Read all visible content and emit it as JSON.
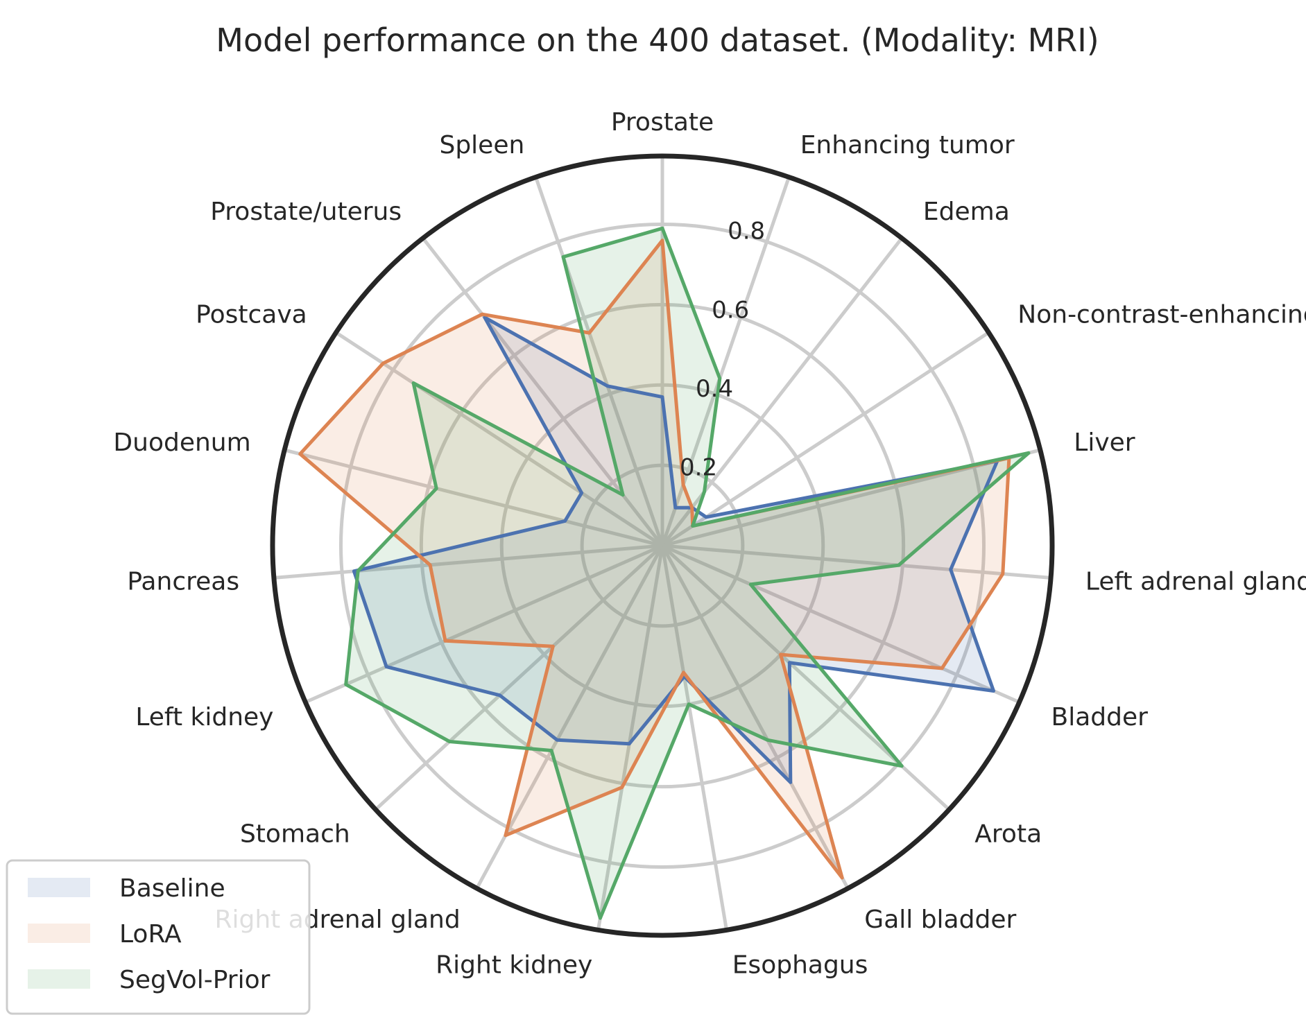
{
  "chart_data": {
    "type": "radar",
    "title": "Model performance on the 400 dataset. (Modality: MRI)",
    "categories": [
      "Prostate",
      "Enhancing tumor",
      "Edema",
      "Non-contrast-enhancing tumor core",
      "Liver",
      "Left adrenal gland",
      "Bladder",
      "Arota",
      "Gall bladder",
      "Esophagus",
      "Right kidney",
      "Right adrenal gland",
      "Stomach",
      "Left kidney",
      "Pancreas",
      "Duodenum",
      "Postcava",
      "Prostate/uterus",
      "Spleen"
    ],
    "r_ticks": [
      0.2,
      0.4,
      0.6,
      0.8
    ],
    "r_tick_labels": [
      "0.2",
      "0.4",
      "0.6",
      "0.8"
    ],
    "rlim": [
      0,
      0.97
    ],
    "grid": true,
    "legend_position": "lower-left",
    "series": [
      {
        "name": "Baseline",
        "color": "#4c72b0",
        "values": [
          0.37,
          0.1,
          0.12,
          0.13,
          0.86,
          0.72,
          0.9,
          0.43,
          0.67,
          0.33,
          0.5,
          0.55,
          0.55,
          0.75,
          0.77,
          0.25,
          0.24,
          0.72,
          0.42
        ]
      },
      {
        "name": "LoRA",
        "color": "#dd8452",
        "values": [
          0.76,
          0.16,
          0.12,
          0.09,
          0.89,
          0.85,
          0.76,
          0.4,
          0.94,
          0.32,
          0.61,
          0.82,
          0.37,
          0.59,
          0.58,
          0.93,
          0.83,
          0.73,
          0.56
        ]
      },
      {
        "name": "SegVol-Prior",
        "color": "#55a868",
        "values": [
          0.79,
          0.44,
          0.17,
          0.09,
          0.94,
          0.59,
          0.24,
          0.81,
          0.55,
          0.4,
          0.94,
          0.58,
          0.72,
          0.86,
          0.76,
          0.58,
          0.74,
          0.16,
          0.76
        ]
      }
    ]
  }
}
